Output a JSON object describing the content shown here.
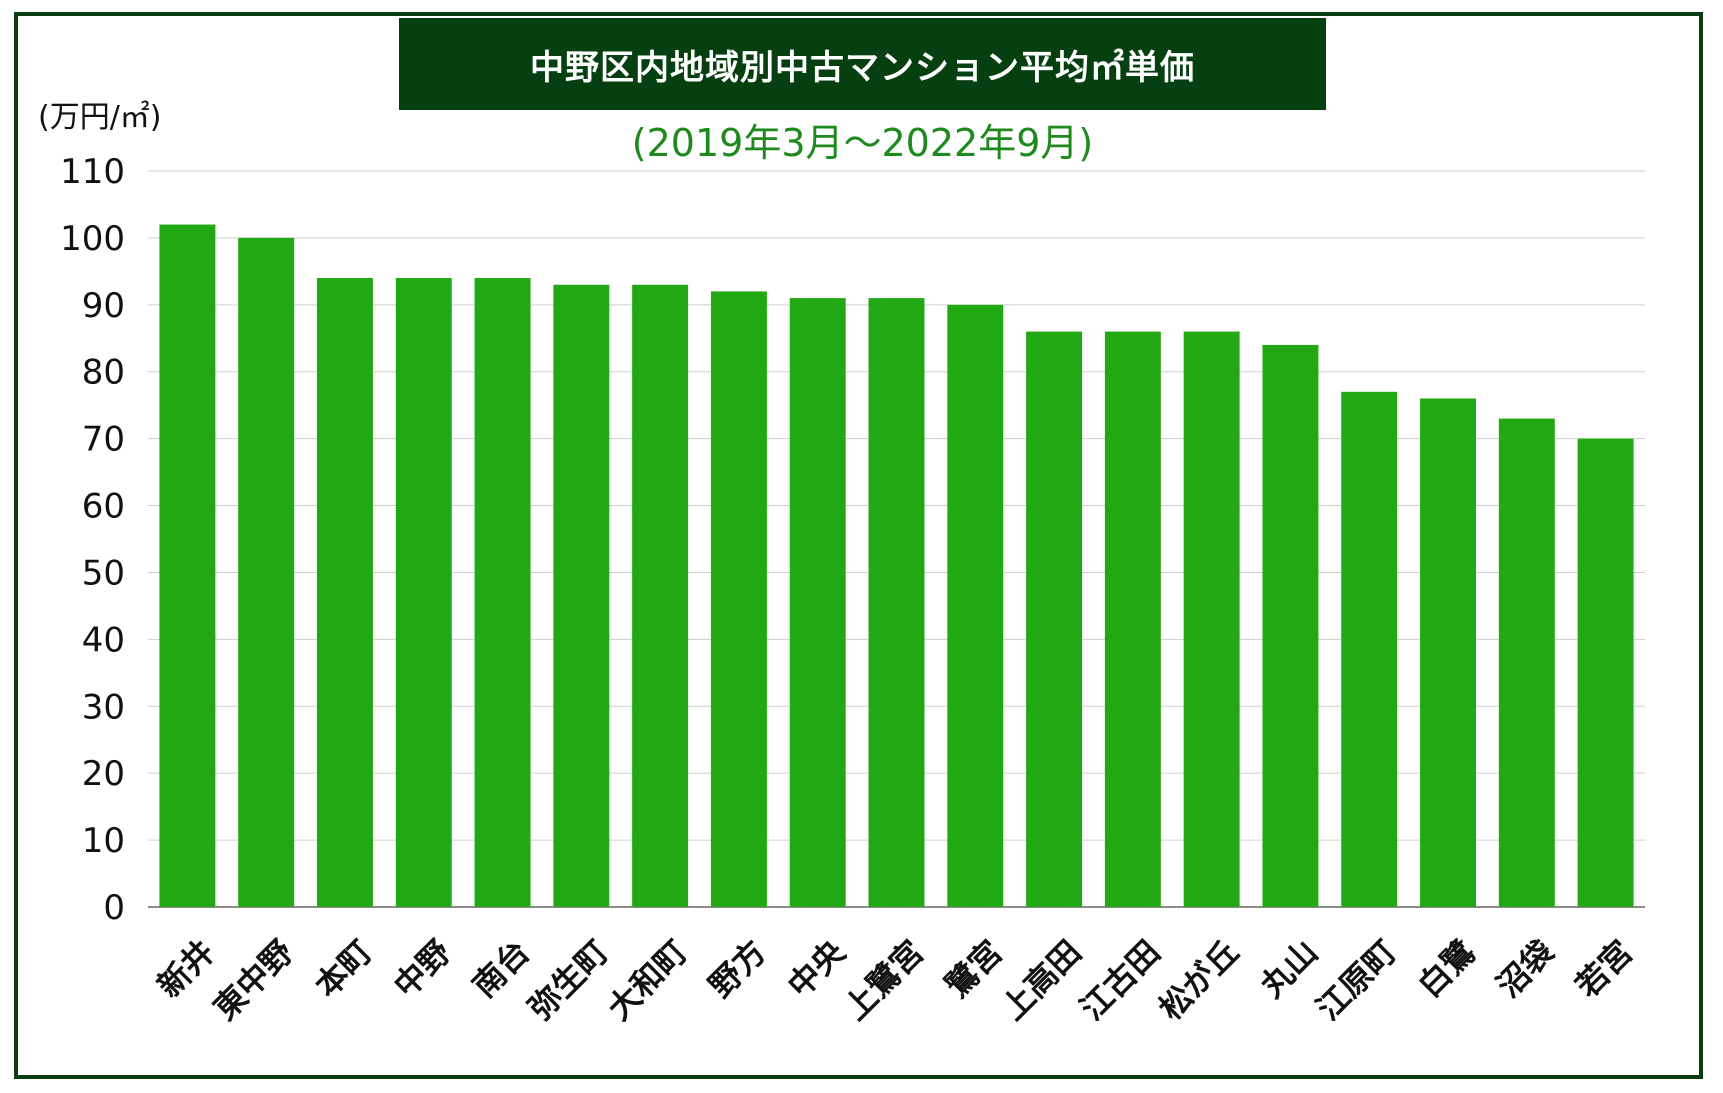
{
  "chart_data": {
    "type": "bar",
    "title": "中野区内地域別中古マンション平均㎡単価",
    "subtitle": "(2019年3月〜2022年9月)",
    "ylabel": "(万円/㎡)",
    "xlabel": "",
    "ylim": [
      0,
      110
    ],
    "yticks": [
      0,
      10,
      20,
      30,
      40,
      50,
      60,
      70,
      80,
      90,
      100,
      110
    ],
    "grid": true,
    "categories": [
      "新井",
      "東中野",
      "本町",
      "中野",
      "南台",
      "弥生町",
      "大和町",
      "野方",
      "中央",
      "上鷺宮",
      "鷺宮",
      "上高田",
      "江古田",
      "松が丘",
      "丸山",
      "江原町",
      "白鷺",
      "沼袋",
      "若宮"
    ],
    "values": [
      102,
      100,
      94,
      94,
      94,
      93,
      93,
      92,
      91,
      91,
      90,
      86,
      86,
      86,
      84,
      77,
      76,
      73,
      70
    ],
    "bar_color": "#21a812",
    "title_bg_color": "#064010",
    "subtitle_color": "#1e8a1e",
    "frame_color": "#0b3d12"
  }
}
